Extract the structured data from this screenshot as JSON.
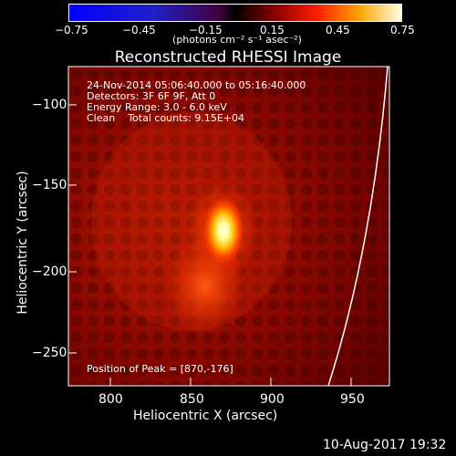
{
  "colorbar": {
    "ticks": [
      "−0.75",
      "−0.45",
      "−0.15",
      "0.15",
      "0.45",
      "0.75"
    ],
    "units": "(photons cm⁻² s⁻¹ asec⁻²)"
  },
  "title": "Reconstructed RHESSI Image",
  "info": {
    "time": "24-Nov-2014 05:06:40.000 to 05:16:40.000",
    "detectors": "Detectors: 3F 6F 9F, Att 0",
    "energy": "Energy Range: 3.0 - 6.0 keV",
    "clean": "Clean    Total counts: 9.15E+04",
    "peak": "Position of Peak = [870,-176]"
  },
  "axes": {
    "xlabel": "Heliocentric X (arcsec)",
    "ylabel": "Heliocentric Y (arcsec)",
    "xticks": [
      "800",
      "850",
      "900",
      "950"
    ],
    "yticks": [
      "−100",
      "−150",
      "−200",
      "−250"
    ]
  },
  "footer": "10-Aug-2017 19:32",
  "colors": {
    "background": "#000000",
    "limb": "#ffffff"
  }
}
